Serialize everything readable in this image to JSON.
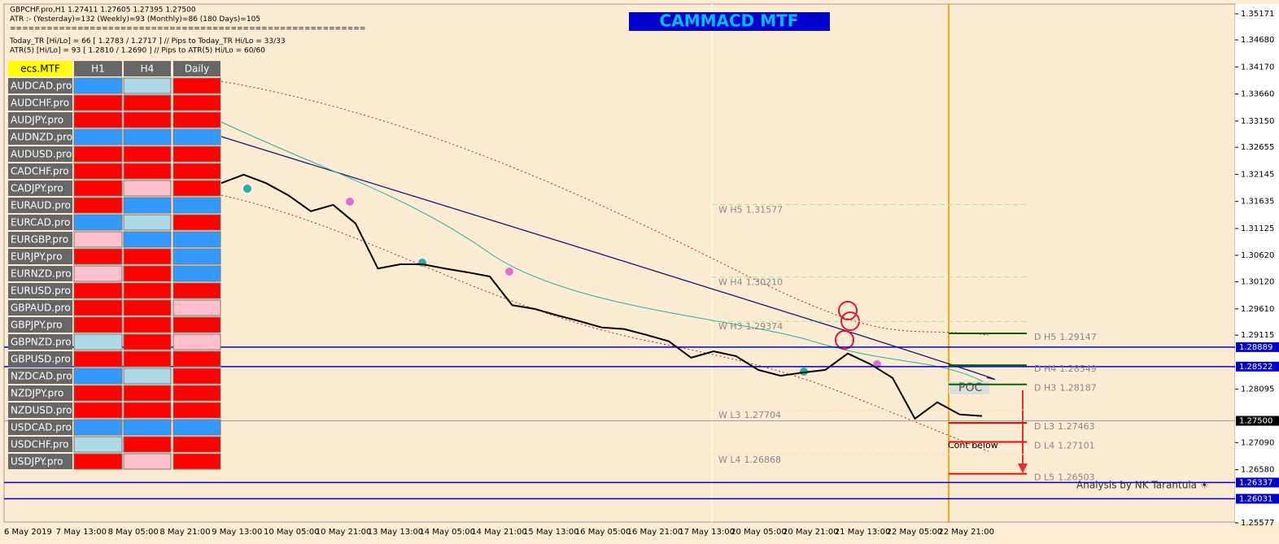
{
  "header": {
    "lines": [
      "GBPCHF.pro,H1  1.27411 1.27605 1.27395 1.27500",
      "ATR :- (Yesterday)=132      (Weekly)=93      (Monthly)=86      (180 Days)=105",
      "==========================================================",
      "Today_TR [Hi/Lo] = 66 [ 1.2783 / 1.2717 ]  // Pips to Today_TR Hi/Lo  = 33/33",
      "ATR(5)      [Hi/Lo] = 93 [ 1.2810 / 1.2690 ]  //  Pips to ATR(5) Hi/Lo      = 60/60"
    ],
    "title": "CAMMACD MTF"
  },
  "table": {
    "header": [
      "ecs.MTF",
      "H1",
      "H4",
      "Daily"
    ],
    "palette": {
      "R": "#ff0000",
      "B": "#3399ff",
      "L": "#add8e6",
      "P": "#ffc0cb"
    },
    "rows": [
      [
        "AUDCAD.pro",
        "B",
        "L",
        "R"
      ],
      [
        "AUDCHF.pro",
        "R",
        "R",
        "R"
      ],
      [
        "AUDJPY.pro",
        "R",
        "R",
        "R"
      ],
      [
        "AUDNZD.pro",
        "B",
        "B",
        "B"
      ],
      [
        "AUDUSD.pro",
        "R",
        "R",
        "R"
      ],
      [
        "CADCHF.pro",
        "R",
        "R",
        "R"
      ],
      [
        "CADJPY.pro",
        "R",
        "P",
        "R"
      ],
      [
        "EURAUD.pro",
        "R",
        "B",
        "B"
      ],
      [
        "EURCAD.pro",
        "B",
        "L",
        "R"
      ],
      [
        "EURGBP.pro",
        "P",
        "B",
        "B"
      ],
      [
        "EURJPY.pro",
        "R",
        "R",
        "B"
      ],
      [
        "EURNZD.pro",
        "P",
        "R",
        "B"
      ],
      [
        "EURUSD.pro",
        "R",
        "R",
        "R"
      ],
      [
        "GBPAUD.pro",
        "R",
        "R",
        "P"
      ],
      [
        "GBPJPY.pro",
        "R",
        "R",
        "R"
      ],
      [
        "GBPNZD.pro",
        "L",
        "R",
        "P"
      ],
      [
        "GBPUSD.pro",
        "R",
        "R",
        "R"
      ],
      [
        "NZDCAD.pro",
        "B",
        "L",
        "R"
      ],
      [
        "NZDJPY.pro",
        "R",
        "R",
        "R"
      ],
      [
        "NZDUSD.pro",
        "R",
        "R",
        "R"
      ],
      [
        "USDCAD.pro",
        "B",
        "B",
        "B"
      ],
      [
        "USDCHF.pro",
        "L",
        "R",
        "R"
      ],
      [
        "USDJPY.pro",
        "R",
        "P",
        "R"
      ]
    ]
  },
  "price_axis": {
    "range": [
      1.25577,
      1.35171
    ],
    "ticks": [
      {
        "value": 1.35171,
        "label": "1.35171"
      },
      {
        "value": 1.3468,
        "label": "1.34680"
      },
      {
        "value": 1.3417,
        "label": "1.34170"
      },
      {
        "value": 1.3366,
        "label": "1.33660"
      },
      {
        "value": 1.3315,
        "label": "1.33150"
      },
      {
        "value": 1.32655,
        "label": "1.32655"
      },
      {
        "value": 1.32145,
        "label": "1.32145"
      },
      {
        "value": 1.31635,
        "label": "1.31635"
      },
      {
        "value": 1.31125,
        "label": "1.31125"
      },
      {
        "value": 1.3062,
        "label": "1.30620"
      },
      {
        "value": 1.3012,
        "label": "1.30120"
      },
      {
        "value": 1.2961,
        "label": "1.29610"
      },
      {
        "value": 1.29115,
        "label": "1.29115"
      },
      {
        "value": 1.28095,
        "label": "1.28095"
      },
      {
        "value": 1.2709,
        "label": "1.27090"
      },
      {
        "value": 1.2658,
        "label": "1.26580"
      },
      {
        "value": 1.25577,
        "label": "1.25577"
      }
    ],
    "marked": [
      {
        "value": 1.28889,
        "label": "1.28889",
        "color": "#0000cd"
      },
      {
        "value": 1.28522,
        "label": "1.28522",
        "color": "#0000cd"
      },
      {
        "value": 1.275,
        "label": "1.27500",
        "color": "#000000"
      },
      {
        "value": 1.26337,
        "label": "1.26337",
        "color": "#0000cd"
      },
      {
        "value": 1.26031,
        "label": "1.26031",
        "color": "#0000cd"
      }
    ]
  },
  "time_axis": [
    "6 May 2019",
    "7 May 13:00",
    "8 May 05:00",
    "8 May 21:00",
    "9 May 13:00",
    "10 May 05:00",
    "10 May 21:00",
    "13 May 13:00",
    "14 May 05:00",
    "14 May 21:00",
    "15 May 13:00",
    "16 May 05:00",
    "16 May 21:00",
    "17 May 13:00",
    "20 May 05:00",
    "20 May 21:00",
    "21 May 13:00",
    "22 May 05:00",
    "22 May 21:00"
  ],
  "weekly_levels": [
    {
      "name": "W H5",
      "price": 1.31577,
      "color": "#90ee90"
    },
    {
      "name": "W H4",
      "price": {
        "value": 1.3021,
        "label": "1.30210"
      },
      "color": "#90ee90"
    },
    {
      "name": "W H3",
      "price": 1.29374,
      "color": "#90ee90"
    },
    {
      "name": "W L3",
      "price": 1.27704,
      "color": "#f5deb3"
    },
    {
      "name": "W L4",
      "price": 1.26868,
      "color": "#f5deb3"
    }
  ],
  "daily_levels": [
    {
      "name": "D H5",
      "price": 1.29147,
      "color": "#006400"
    },
    {
      "name": "D H4",
      "price": 1.28549,
      "color": "#006400"
    },
    {
      "name": "D H3",
      "price": 1.28187,
      "color": "#006400"
    },
    {
      "name": "D L3",
      "price": 1.27463,
      "color": "#ff0000"
    },
    {
      "name": "D L4",
      "price": 1.27101,
      "color": "#ff0000"
    },
    {
      "name": "D L5",
      "price": 1.26503,
      "color": "#ff0000"
    }
  ],
  "price": [
    1.3198,
    1.3214,
    1.3198,
    1.3175,
    1.3145,
    1.3157,
    1.3122,
    1.3037,
    1.3045,
    1.3045,
    1.3037,
    1.303,
    1.3022,
    1.2968,
    1.2961,
    1.2949,
    1.2938,
    1.2926,
    1.2923,
    1.2912,
    1.29,
    1.2869,
    1.2881,
    1.2872,
    1.2846,
    1.2835,
    1.2841,
    1.2846,
    1.2877,
    1.2857,
    1.2831,
    1.2754,
    1.2785,
    1.2762,
    1.2759
  ],
  "annotations": {
    "poc": "POC",
    "cont": "Cont below",
    "credit": "Analysis by NK Tarantula ☀"
  }
}
